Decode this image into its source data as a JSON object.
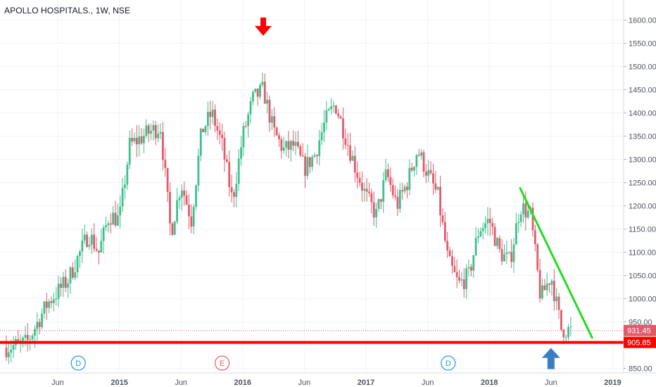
{
  "header": {
    "title": "APOLLO HOSPITALS., 1W, NSE"
  },
  "colors": {
    "up": "#3ebf8d",
    "down": "#e05a6b",
    "support": "#ff0000",
    "trendline": "#22dd22",
    "arrow_down": "#ff0000",
    "arrow_up": "#3b7dc4"
  },
  "chart_data": {
    "type": "candlestick",
    "title": "APOLLO HOSPITALS., 1W, NSE",
    "y_ticks": [
      "1600.00",
      "1550.00",
      "1500.00",
      "1450.00",
      "1400.00",
      "1350.00",
      "1300.00",
      "1250.00",
      "1200.00",
      "1150.00",
      "1100.00",
      "1050.00",
      "1000.00",
      "950.00",
      "900.00",
      "850.00"
    ],
    "x_ticks": [
      "Jun",
      "2015",
      "Jun",
      "2016",
      "Jun",
      "2017",
      "Jun",
      "2018",
      "Jun",
      "2019"
    ],
    "ylim": [
      840,
      1630
    ],
    "price_labels": {
      "last": "931.45",
      "support": "905.85"
    },
    "event_markers": [
      "D",
      "E",
      "D"
    ],
    "support_level": 905.85,
    "trendline": {
      "from": {
        "date": "2018-04",
        "price": 1238
      },
      "to": {
        "date": "2018-11",
        "price": 916
      }
    },
    "annotations": [
      {
        "type": "arrow-down",
        "near": "2016-03",
        "price_ref": 1548
      },
      {
        "type": "arrow-up",
        "near": "2018-07",
        "price_ref": 905.85
      }
    ],
    "anchors": [
      [
        "2014-02",
        895
      ],
      [
        "2014-04",
        905
      ],
      [
        "2014-06",
        990
      ],
      [
        "2014-08",
        1040
      ],
      [
        "2014-10",
        1140
      ],
      [
        "2014-11",
        1100
      ],
      [
        "2014-12",
        1180
      ],
      [
        "2015-01",
        1170
      ],
      [
        "2015-02",
        1330
      ],
      [
        "2015-04",
        1360
      ],
      [
        "2015-05",
        1370
      ],
      [
        "2015-06",
        1140
      ],
      [
        "2015-07",
        1250
      ],
      [
        "2015-08",
        1170
      ],
      [
        "2015-09",
        1360
      ],
      [
        "2015-10",
        1400
      ],
      [
        "2015-11",
        1330
      ],
      [
        "2015-12",
        1210
      ],
      [
        "2016-01",
        1350
      ],
      [
        "2016-02",
        1430
      ],
      [
        "2016-03",
        1450
      ],
      [
        "2016-04",
        1360
      ],
      [
        "2016-05",
        1320
      ],
      [
        "2016-06",
        1330
      ],
      [
        "2016-07",
        1280
      ],
      [
        "2016-08",
        1310
      ],
      [
        "2016-09",
        1380
      ],
      [
        "2016-10",
        1420
      ],
      [
        "2016-11",
        1350
      ],
      [
        "2016-12",
        1280
      ],
      [
        "2017-01",
        1220
      ],
      [
        "2017-02",
        1180
      ],
      [
        "2017-03",
        1270
      ],
      [
        "2017-04",
        1200
      ],
      [
        "2017-05",
        1250
      ],
      [
        "2017-06",
        1320
      ],
      [
        "2017-07",
        1270
      ],
      [
        "2017-08",
        1220
      ],
      [
        "2017-09",
        1080
      ],
      [
        "2017-10",
        1030
      ],
      [
        "2017-11",
        1050
      ],
      [
        "2017-12",
        1150
      ],
      [
        "2018-01",
        1170
      ],
      [
        "2018-02",
        1100
      ],
      [
        "2018-03",
        1080
      ],
      [
        "2018-04",
        1200
      ],
      [
        "2018-05",
        1180
      ],
      [
        "2018-06",
        1000
      ],
      [
        "2018-07",
        1050
      ],
      [
        "2018-08",
        935
      ],
      [
        "2018-09",
        931
      ]
    ]
  }
}
